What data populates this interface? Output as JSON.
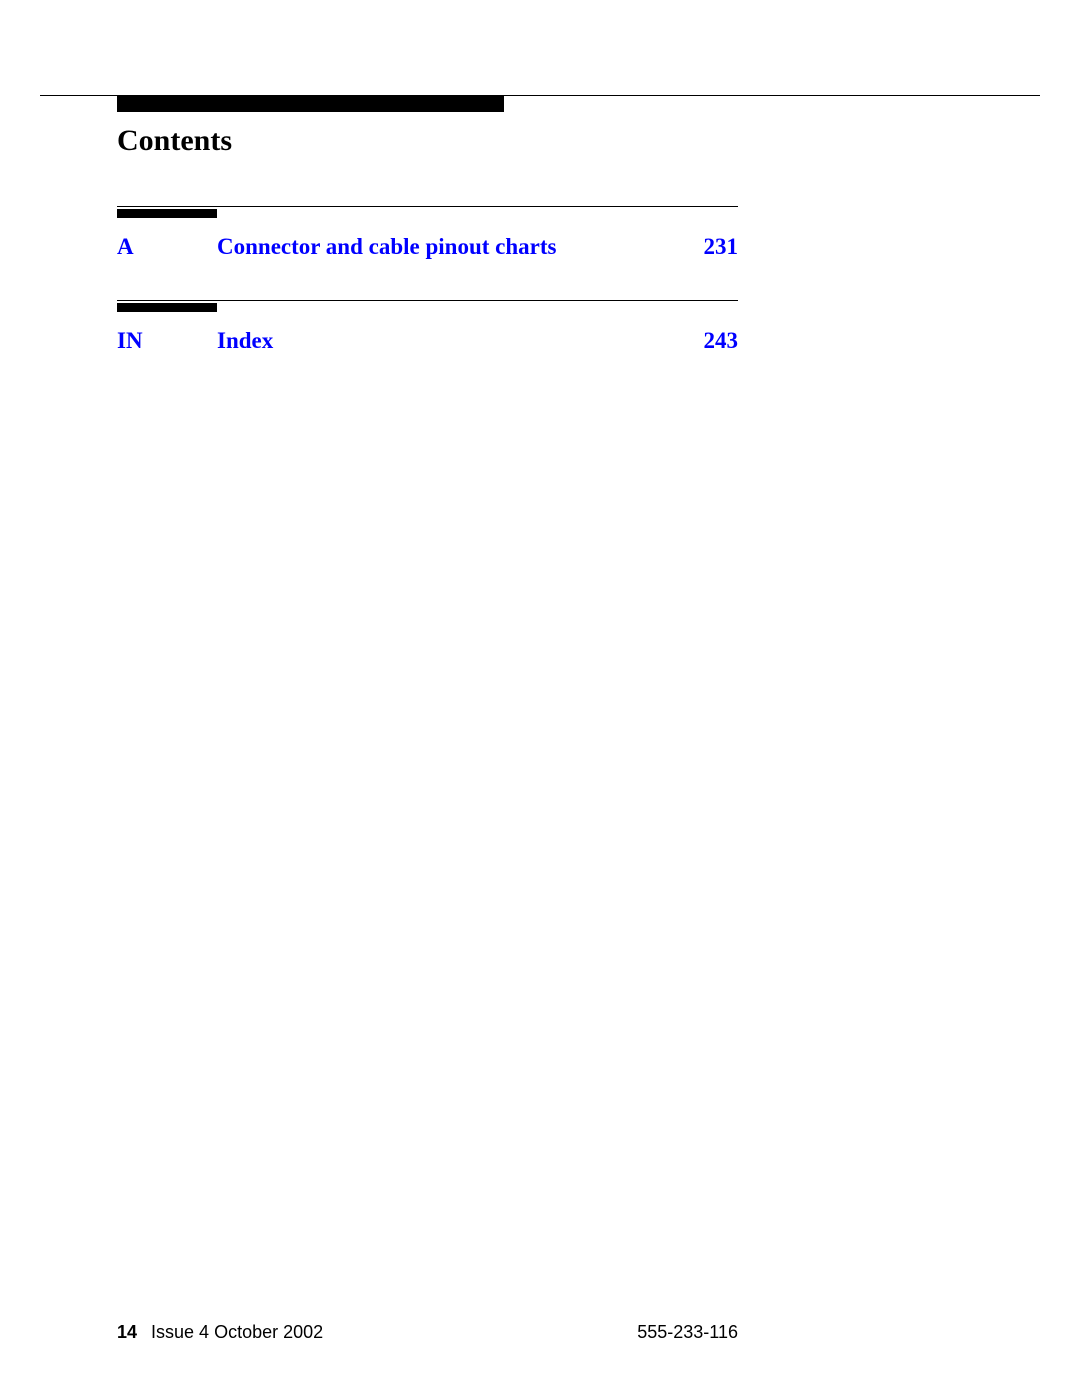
{
  "header": {
    "title": "Contents"
  },
  "entries": [
    {
      "letter": "A",
      "title": "Connector and cable pinout charts",
      "page": "231"
    },
    {
      "letter": "IN",
      "title": "Index",
      "page": "243"
    }
  ],
  "footer": {
    "page_number": "14",
    "issue_text": "Issue 4   October 2002",
    "doc_number": "555-233-116"
  },
  "colors": {
    "link_color": "#0000ff",
    "text_color": "#000000",
    "background": "#ffffff"
  }
}
